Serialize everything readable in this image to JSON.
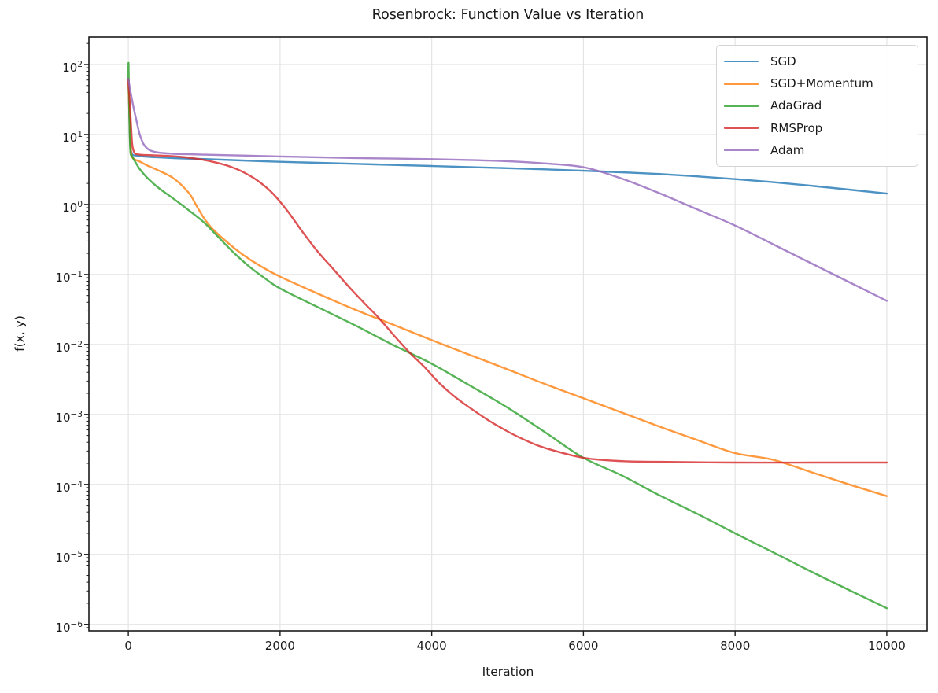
{
  "figure": {
    "background": "#ffffff",
    "text_color": "#1a1a1a"
  },
  "chart_data": {
    "type": "line",
    "title": "Rosenbrock: Function Value vs Iteration",
    "xlabel": "Iteration",
    "ylabel": "f(x, y)",
    "x_scale": "linear",
    "y_scale": "log",
    "xlim": [
      -520,
      10530
    ],
    "ylim_log": [
      -6.093,
      2.393
    ],
    "x_ticks": [
      0,
      2000,
      4000,
      6000,
      8000,
      10000
    ],
    "y_tick_exponents": [
      2,
      1,
      0,
      -1,
      -2,
      -3,
      -4,
      -5,
      -6
    ],
    "grid": true,
    "legend_position": "upper right",
    "line_alpha": 0.8,
    "line_width": 2.4,
    "series": [
      {
        "name": "SGD",
        "color": "#1f77b4",
        "points": [
          [
            0,
            62
          ],
          [
            10,
            25
          ],
          [
            25,
            7.5
          ],
          [
            50,
            5.3
          ],
          [
            100,
            5.0
          ],
          [
            200,
            4.85
          ],
          [
            400,
            4.7
          ],
          [
            700,
            4.55
          ],
          [
            1000,
            4.45
          ],
          [
            1500,
            4.25
          ],
          [
            2000,
            4.07
          ],
          [
            2500,
            3.93
          ],
          [
            3000,
            3.8
          ],
          [
            3500,
            3.67
          ],
          [
            4000,
            3.55
          ],
          [
            4500,
            3.42
          ],
          [
            5000,
            3.3
          ],
          [
            5500,
            3.17
          ],
          [
            6000,
            3.03
          ],
          [
            6500,
            2.88
          ],
          [
            7000,
            2.72
          ],
          [
            7500,
            2.52
          ],
          [
            8000,
            2.3
          ],
          [
            8500,
            2.08
          ],
          [
            9000,
            1.85
          ],
          [
            9500,
            1.63
          ],
          [
            10000,
            1.43
          ]
        ]
      },
      {
        "name": "SGD+Momentum",
        "color": "#ff7f0e",
        "points": [
          [
            0,
            62
          ],
          [
            15,
            18
          ],
          [
            35,
            5.6
          ],
          [
            70,
            4.5
          ],
          [
            100,
            4.3
          ],
          [
            150,
            4.1
          ],
          [
            250,
            3.6
          ],
          [
            400,
            3.05
          ],
          [
            600,
            2.35
          ],
          [
            800,
            1.45
          ],
          [
            900,
            0.95
          ],
          [
            1000,
            0.63
          ],
          [
            1100,
            0.46
          ],
          [
            1300,
            0.29
          ],
          [
            1500,
            0.195
          ],
          [
            1750,
            0.13
          ],
          [
            2000,
            0.093
          ],
          [
            2500,
            0.053
          ],
          [
            3000,
            0.031
          ],
          [
            3500,
            0.019
          ],
          [
            4000,
            0.0115
          ],
          [
            4500,
            0.0071
          ],
          [
            5000,
            0.0044
          ],
          [
            5500,
            0.0027
          ],
          [
            6000,
            0.0017
          ],
          [
            6500,
            0.00107
          ],
          [
            7000,
            0.00067
          ],
          [
            7500,
            0.00043
          ],
          [
            8000,
            0.00028
          ],
          [
            8500,
            0.000225
          ],
          [
            9000,
            0.00015
          ],
          [
            9500,
            0.0001
          ],
          [
            10000,
            6.8e-05
          ]
        ]
      },
      {
        "name": "AdaGrad",
        "color": "#2ca02c",
        "points": [
          [
            0,
            62
          ],
          [
            3,
            104
          ],
          [
            10,
            32
          ],
          [
            25,
            6.2
          ],
          [
            50,
            4.9
          ],
          [
            100,
            3.9
          ],
          [
            150,
            3.2
          ],
          [
            250,
            2.4
          ],
          [
            400,
            1.72
          ],
          [
            600,
            1.2
          ],
          [
            800,
            0.82
          ],
          [
            1000,
            0.55
          ],
          [
            1200,
            0.33
          ],
          [
            1400,
            0.2
          ],
          [
            1600,
            0.128
          ],
          [
            1800,
            0.088
          ],
          [
            2000,
            0.063
          ],
          [
            2500,
            0.034
          ],
          [
            3000,
            0.0185
          ],
          [
            3500,
            0.0097
          ],
          [
            4000,
            0.0053
          ],
          [
            4500,
            0.0026
          ],
          [
            5000,
            0.00125
          ],
          [
            5500,
            0.00055
          ],
          [
            6000,
            0.00024
          ],
          [
            6500,
            0.000135
          ],
          [
            7000,
            7e-05
          ],
          [
            7500,
            3.8e-05
          ],
          [
            8000,
            2e-05
          ],
          [
            8500,
            1.07e-05
          ],
          [
            9000,
            5.7e-06
          ],
          [
            9500,
            3.1e-06
          ],
          [
            10000,
            1.7e-06
          ]
        ]
      },
      {
        "name": "RMSProp",
        "color": "#d62728",
        "points": [
          [
            0,
            62
          ],
          [
            25,
            22
          ],
          [
            50,
            7.5
          ],
          [
            80,
            5.5
          ],
          [
            120,
            5.2
          ],
          [
            200,
            5.1
          ],
          [
            300,
            5.05
          ],
          [
            500,
            4.95
          ],
          [
            700,
            4.78
          ],
          [
            900,
            4.5
          ],
          [
            1100,
            4.1
          ],
          [
            1300,
            3.6
          ],
          [
            1500,
            2.95
          ],
          [
            1700,
            2.2
          ],
          [
            1900,
            1.45
          ],
          [
            2100,
            0.8
          ],
          [
            2300,
            0.4
          ],
          [
            2500,
            0.21
          ],
          [
            2700,
            0.12
          ],
          [
            2900,
            0.068
          ],
          [
            3100,
            0.04
          ],
          [
            3300,
            0.024
          ],
          [
            3500,
            0.0135
          ],
          [
            3700,
            0.0078
          ],
          [
            3900,
            0.0048
          ],
          [
            4100,
            0.0028
          ],
          [
            4300,
            0.0018
          ],
          [
            4500,
            0.00125
          ],
          [
            4750,
            0.00082
          ],
          [
            5000,
            0.00057
          ],
          [
            5250,
            0.00042
          ],
          [
            5500,
            0.00033
          ],
          [
            6000,
            0.00024
          ],
          [
            6500,
            0.000215
          ],
          [
            7000,
            0.00021
          ],
          [
            8000,
            0.000205
          ],
          [
            9000,
            0.000205
          ],
          [
            10000,
            0.000205
          ]
        ]
      },
      {
        "name": "Adam",
        "color": "#9467bd",
        "points": [
          [
            0,
            62
          ],
          [
            30,
            40
          ],
          [
            60,
            27
          ],
          [
            100,
            17
          ],
          [
            150,
            10
          ],
          [
            200,
            7.3
          ],
          [
            250,
            6.3
          ],
          [
            300,
            5.85
          ],
          [
            400,
            5.5
          ],
          [
            600,
            5.3
          ],
          [
            800,
            5.22
          ],
          [
            1000,
            5.15
          ],
          [
            1500,
            5.0
          ],
          [
            2000,
            4.85
          ],
          [
            2500,
            4.72
          ],
          [
            3000,
            4.6
          ],
          [
            3500,
            4.52
          ],
          [
            4000,
            4.44
          ],
          [
            4500,
            4.32
          ],
          [
            5000,
            4.15
          ],
          [
            5500,
            3.85
          ],
          [
            6000,
            3.4
          ],
          [
            6500,
            2.35
          ],
          [
            7000,
            1.45
          ],
          [
            7500,
            0.85
          ],
          [
            8000,
            0.5
          ],
          [
            8500,
            0.27
          ],
          [
            9000,
            0.145
          ],
          [
            9500,
            0.078
          ],
          [
            10000,
            0.042
          ]
        ]
      }
    ]
  }
}
